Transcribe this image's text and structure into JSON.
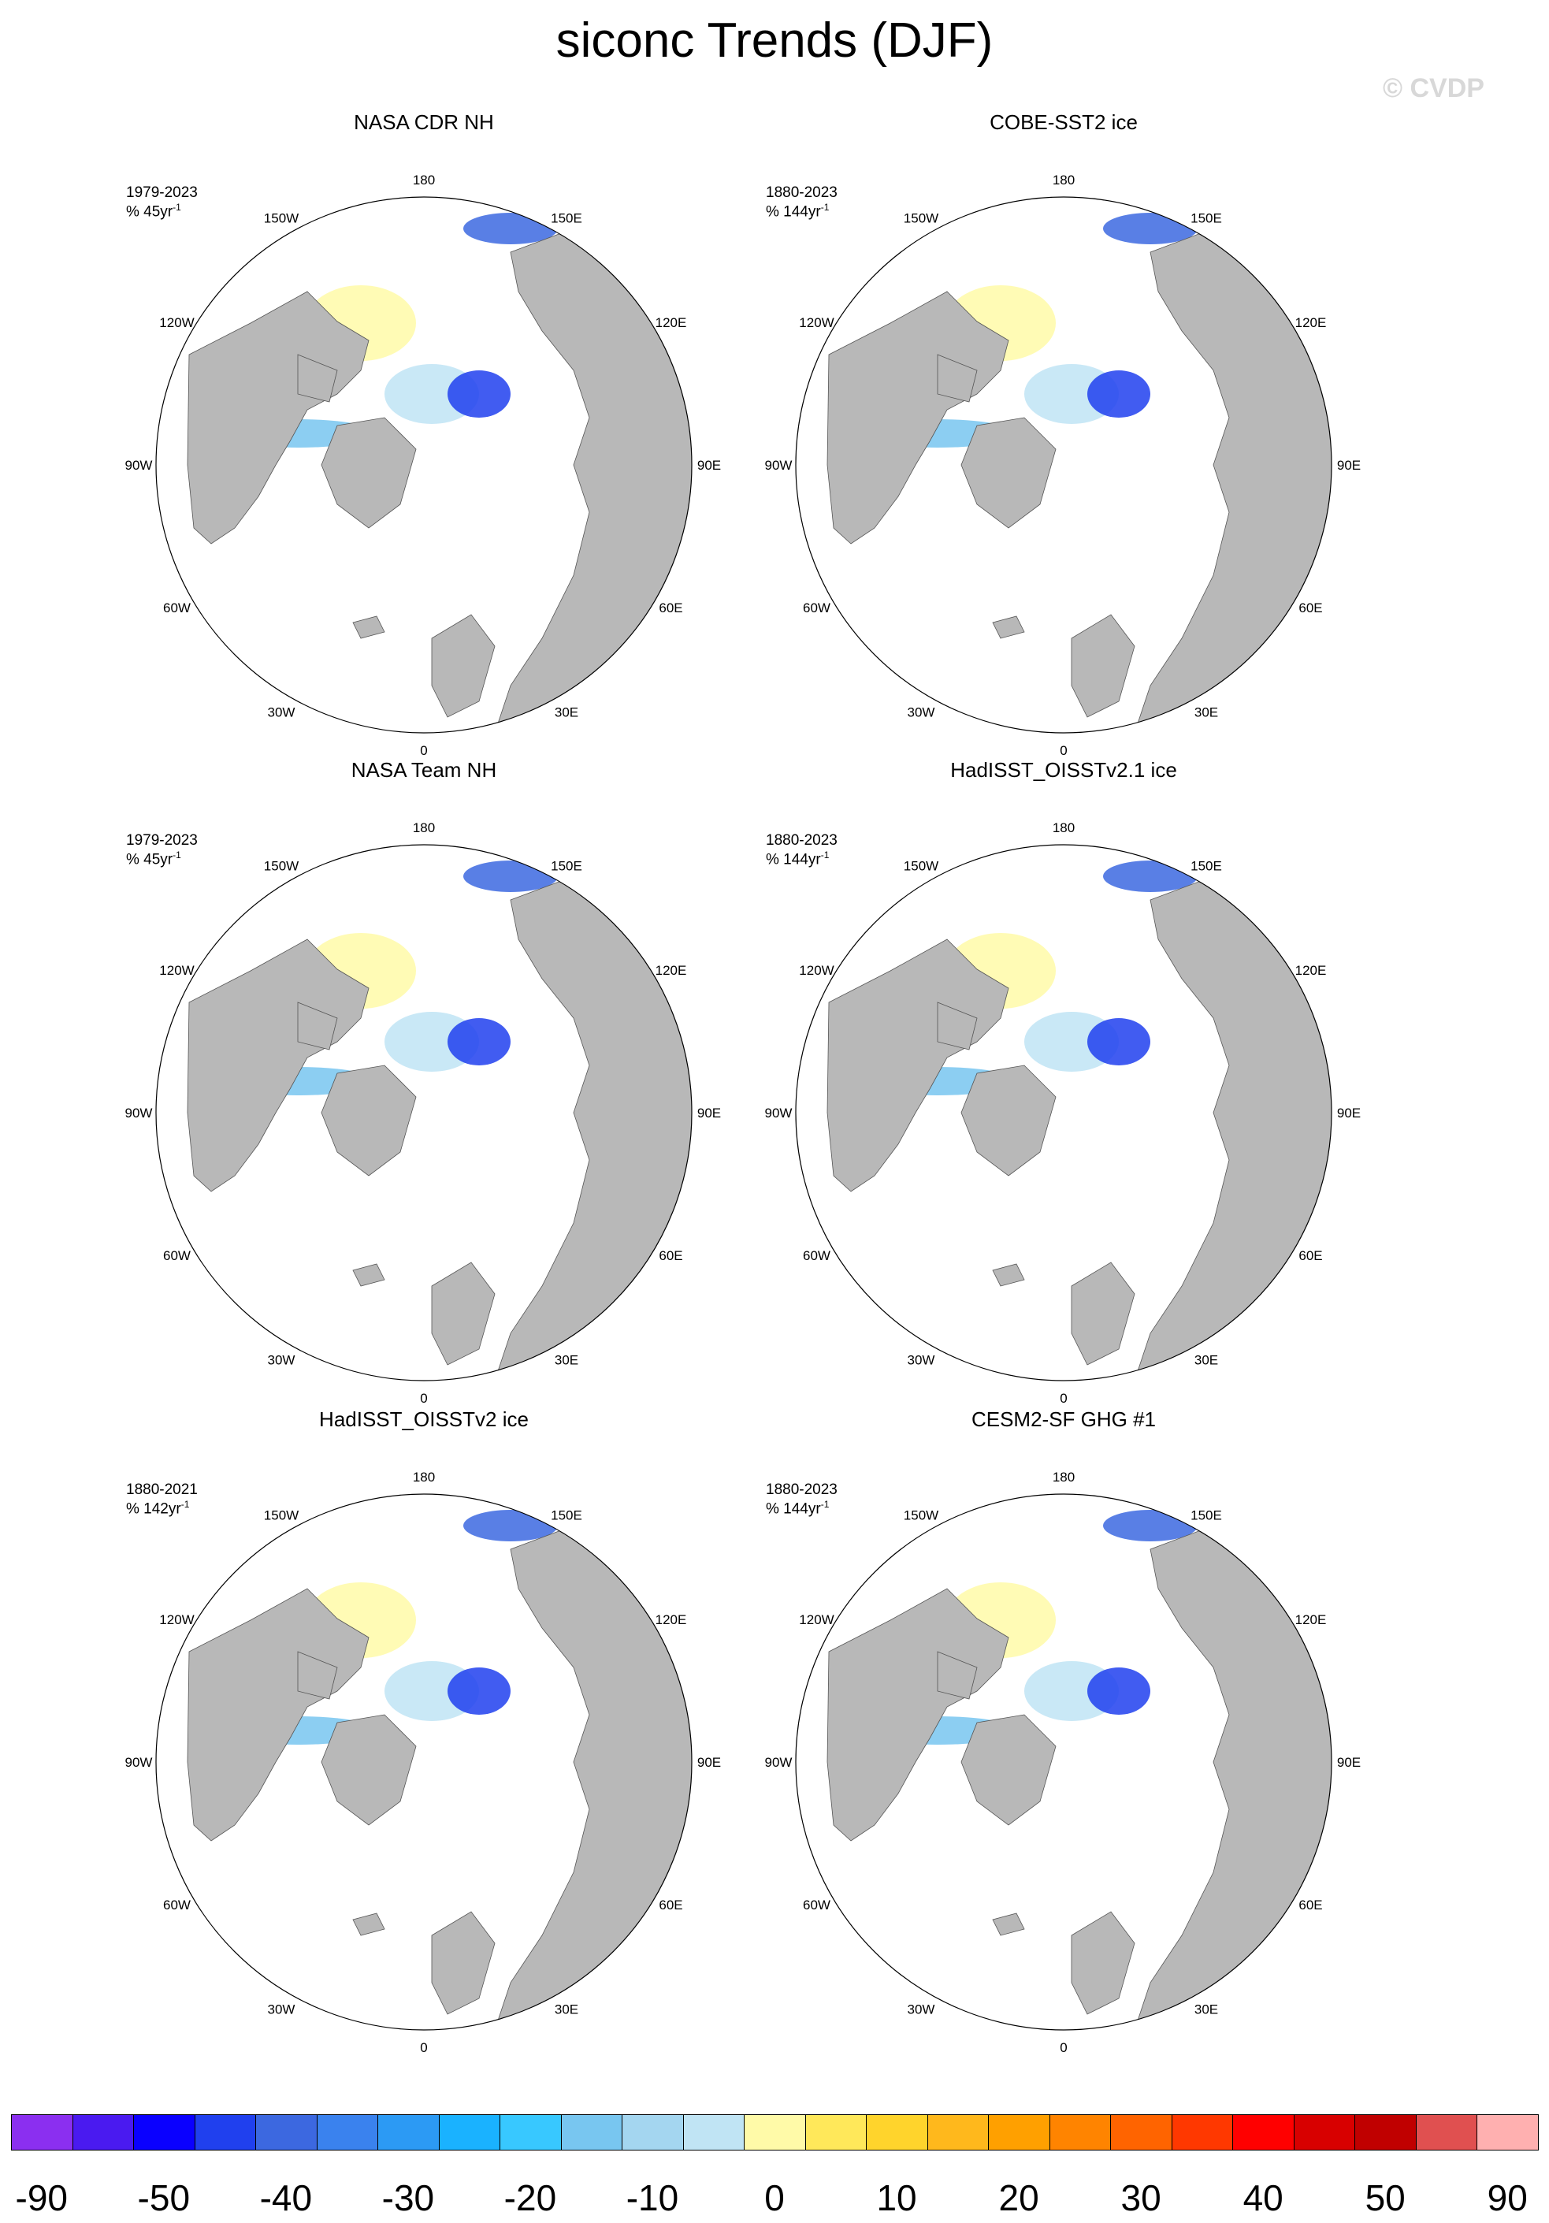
{
  "title": "siconc Trends (DJF)",
  "watermark": "© CVDP",
  "lon_labels": [
    "180",
    "150E",
    "120E",
    "90E",
    "60E",
    "30E",
    "0",
    "30W",
    "60W",
    "90W",
    "120W",
    "150W"
  ],
  "panels": [
    {
      "title": "NASA CDR NH",
      "period": "1979-2023",
      "units_prefix": "% 45yr",
      "units_exp": "-1"
    },
    {
      "title": "COBE-SST2 ice",
      "period": "1880-2023",
      "units_prefix": "% 144yr",
      "units_exp": "-1"
    },
    {
      "title": "NASA Team NH",
      "period": "1979-2023",
      "units_prefix": "% 45yr",
      "units_exp": "-1"
    },
    {
      "title": "HadISST_OISSTv2.1 ice",
      "period": "1880-2023",
      "units_prefix": "% 144yr",
      "units_exp": "-1"
    },
    {
      "title": "HadISST_OISSTv2 ice",
      "period": "1880-2021",
      "units_prefix": "% 142yr",
      "units_exp": "-1"
    },
    {
      "title": "CESM2-SF GHG #1",
      "period": "1880-2023",
      "units_prefix": "% 144yr",
      "units_exp": "-1"
    }
  ],
  "colorbar": {
    "colors": [
      "#8b2ff0",
      "#4a1af0",
      "#0a00ff",
      "#2040ee",
      "#3c68e0",
      "#3a82ee",
      "#2c9af4",
      "#1ab2ff",
      "#38c8ff",
      "#78c6f0",
      "#a4d6f0",
      "#c0e4f4",
      "#fffaa8",
      "#ffe85a",
      "#ffd42c",
      "#ffb81c",
      "#ffa000",
      "#ff8400",
      "#ff6400",
      "#ff3800",
      "#ff0000",
      "#d80000",
      "#c00000",
      "#e05050",
      "#ffb0b0"
    ],
    "labels": [
      "-90",
      "-50",
      "-40",
      "-30",
      "-20",
      "-10",
      "0",
      "10",
      "20",
      "30",
      "40",
      "50",
      "90"
    ]
  }
}
